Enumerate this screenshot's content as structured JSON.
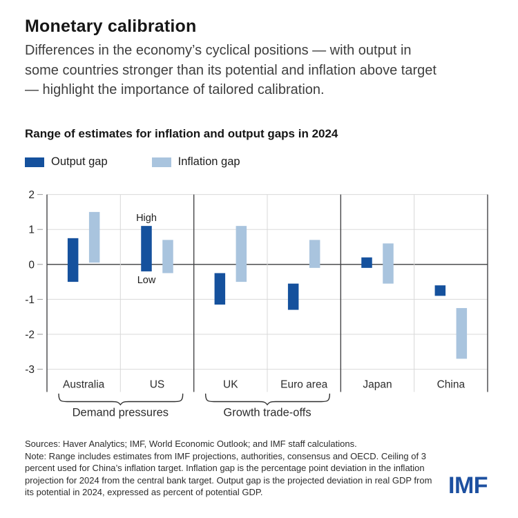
{
  "page": {
    "title": "Monetary calibration",
    "subtitle": "Differences in the economy’s cyclical positions — with output in some countries stronger than its potential and inflation above target — highlight the importance of tailored calibration."
  },
  "chart_data": {
    "type": "bar",
    "subtype": "floating-range-bars",
    "title": "Range of estimates for inflation and output gaps in 2024",
    "categories": [
      "Australia",
      "US",
      "UK",
      "Euro area",
      "Japan",
      "China"
    ],
    "series": [
      {
        "name": "Output gap",
        "color": "#15519d",
        "ranges": [
          [
            -0.5,
            0.75
          ],
          [
            -0.2,
            1.1
          ],
          [
            -1.15,
            -0.25
          ],
          [
            -1.3,
            -0.55
          ],
          [
            -0.1,
            0.2
          ],
          [
            -0.9,
            -0.6
          ]
        ]
      },
      {
        "name": "Inflation gap",
        "color": "#a9c4de",
        "ranges": [
          [
            0.05,
            1.5
          ],
          [
            -0.25,
            0.7
          ],
          [
            -0.5,
            1.1
          ],
          [
            -0.1,
            0.7
          ],
          [
            -0.55,
            0.6
          ],
          [
            -2.7,
            -1.25
          ]
        ]
      }
    ],
    "ylim": [
      -3,
      2
    ],
    "yticks": [
      "2",
      "1",
      "0",
      "-1",
      "-2",
      "-3"
    ],
    "grid": true,
    "zero_line": true,
    "legend_position": "top-left",
    "annotations": [
      {
        "text": "High",
        "series": 0,
        "category": "US",
        "position": "above"
      },
      {
        "text": "Low",
        "series": 0,
        "category": "US",
        "position": "below"
      }
    ],
    "groups": [
      {
        "label": "Demand pressures",
        "from": 0,
        "to": 1
      },
      {
        "label": "Growth trade-offs",
        "from": 2,
        "to": 3
      }
    ],
    "separators_after": [
      1,
      3
    ]
  },
  "footer": {
    "sources": "Sources: Haver Analytics; IMF, World Economic Outlook; and IMF staff calculations.",
    "note": "Note: Range includes estimates from IMF projections, authorities, consensus and OECD. Ceiling of 3 percent used for China’s inflation target.  Inflation gap is the percentage point deviation in the inflation projection for 2024 from the central bank target. Output gap is the projected deviation in real GDP from its potential in 2024, expressed as percent of potential GDP.",
    "logo": "IMF"
  },
  "colors": {
    "output_gap": "#15519d",
    "inflation_gap": "#a9c4de",
    "logo_blue": "#1d50a0",
    "zero_line": "#58595b",
    "axis_dark": "#454547",
    "gridline": "#dadada",
    "separator_light": "#d8d8d8",
    "tick_mark": "#9a9a9a",
    "label_text": "#2d2d2d"
  }
}
